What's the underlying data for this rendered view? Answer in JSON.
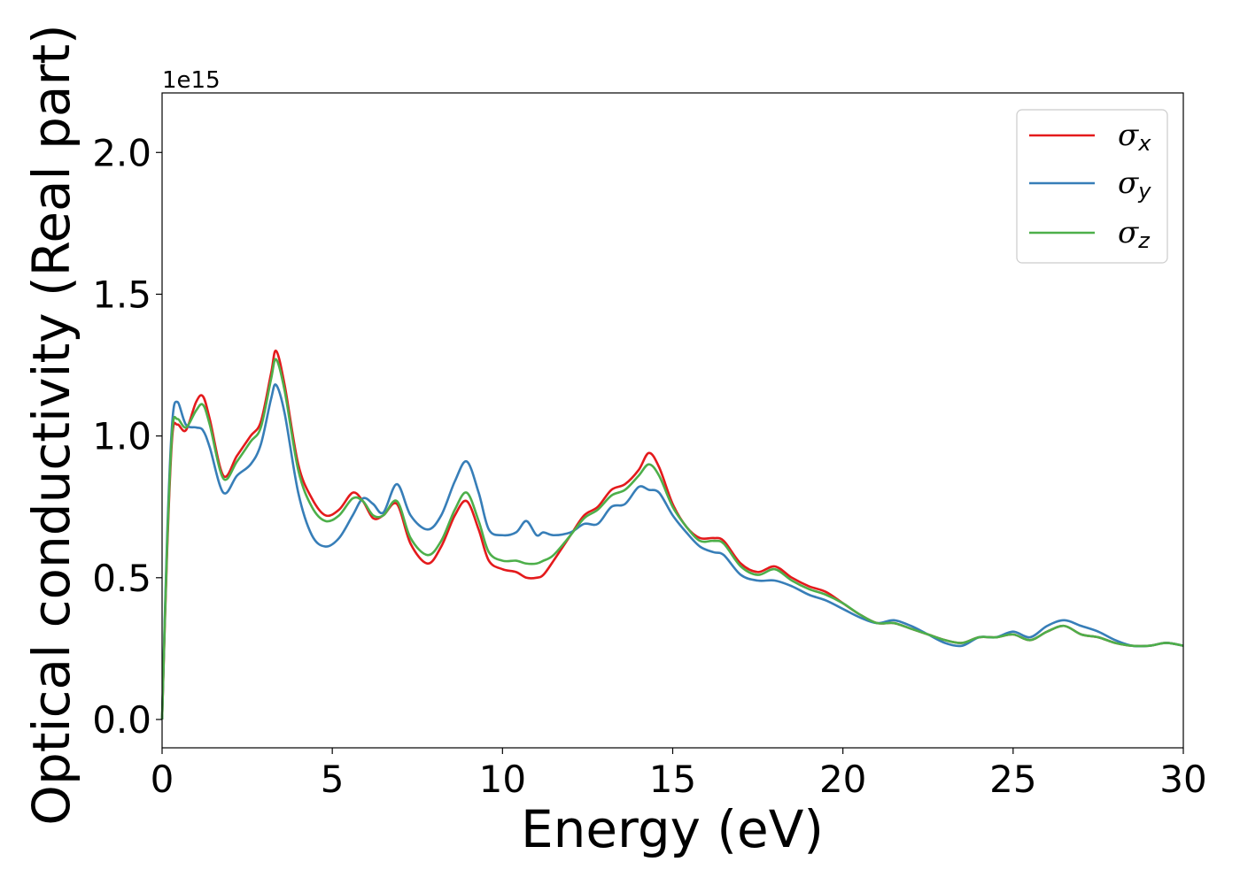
{
  "chart_data": {
    "type": "line",
    "title": "",
    "xlabel": "Energy (eV)",
    "ylabel": "Optical conductivity (Real part)",
    "y_offset_label": "1e15",
    "xlim": [
      0,
      30
    ],
    "ylim": [
      -0.1,
      2.21
    ],
    "xticks": [
      0,
      5,
      10,
      15,
      20,
      25,
      30
    ],
    "xtick_labels": [
      "0",
      "5",
      "10",
      "15",
      "20",
      "25",
      "30"
    ],
    "yticks": [
      0.0,
      0.5,
      1.0,
      1.5,
      2.0
    ],
    "ytick_labels": [
      "0.0",
      "0.5",
      "1.0",
      "1.5",
      "2.0"
    ],
    "grid": false,
    "legend_position": "top-right",
    "x": [
      0,
      0.15,
      0.3,
      0.45,
      0.7,
      1.0,
      1.2,
      1.4,
      1.8,
      2.2,
      2.6,
      2.9,
      3.2,
      3.35,
      3.6,
      4.0,
      4.4,
      4.8,
      5.2,
      5.6,
      5.9,
      6.2,
      6.5,
      6.9,
      7.3,
      7.8,
      8.2,
      8.6,
      8.95,
      9.3,
      9.6,
      10.0,
      10.4,
      10.7,
      11.0,
      11.2,
      11.5,
      12.0,
      12.4,
      12.8,
      13.2,
      13.6,
      14.0,
      14.3,
      14.6,
      15.0,
      15.4,
      15.8,
      16.2,
      16.5,
      17.0,
      17.5,
      18.0,
      18.5,
      19.0,
      19.5,
      20.0,
      20.5,
      21.0,
      21.5,
      22.0,
      22.5,
      23.0,
      23.5,
      24.0,
      24.5,
      25.0,
      25.5,
      26.0,
      26.5,
      27.0,
      27.5,
      28.0,
      28.5,
      29.0,
      29.5,
      30.0
    ],
    "series": [
      {
        "name": "σx",
        "color": "#e41a1c",
        "values": [
          0.0,
          0.6,
          1.0,
          1.04,
          1.02,
          1.12,
          1.14,
          1.06,
          0.86,
          0.93,
          1.0,
          1.05,
          1.22,
          1.3,
          1.18,
          0.9,
          0.78,
          0.72,
          0.74,
          0.8,
          0.77,
          0.71,
          0.72,
          0.76,
          0.62,
          0.55,
          0.61,
          0.72,
          0.77,
          0.67,
          0.56,
          0.53,
          0.52,
          0.5,
          0.5,
          0.51,
          0.56,
          0.65,
          0.72,
          0.75,
          0.81,
          0.83,
          0.88,
          0.94,
          0.89,
          0.76,
          0.68,
          0.64,
          0.64,
          0.63,
          0.55,
          0.52,
          0.54,
          0.5,
          0.47,
          0.45,
          0.41,
          0.37,
          0.34,
          0.34,
          0.32,
          0.3,
          0.28,
          0.27,
          0.29,
          0.29,
          0.3,
          0.28,
          0.31,
          0.33,
          0.3,
          0.29,
          0.27,
          0.26,
          0.26,
          0.27,
          0.26
        ]
      },
      {
        "name": "σy",
        "color": "#377eb8",
        "values": [
          0.0,
          0.65,
          1.05,
          1.12,
          1.04,
          1.03,
          1.02,
          0.96,
          0.8,
          0.86,
          0.9,
          0.97,
          1.13,
          1.18,
          1.08,
          0.8,
          0.65,
          0.61,
          0.64,
          0.72,
          0.78,
          0.76,
          0.73,
          0.83,
          0.72,
          0.67,
          0.72,
          0.84,
          0.91,
          0.8,
          0.67,
          0.65,
          0.66,
          0.7,
          0.65,
          0.66,
          0.65,
          0.66,
          0.69,
          0.69,
          0.75,
          0.76,
          0.82,
          0.81,
          0.8,
          0.72,
          0.66,
          0.61,
          0.59,
          0.58,
          0.51,
          0.49,
          0.49,
          0.47,
          0.44,
          0.42,
          0.39,
          0.36,
          0.34,
          0.35,
          0.33,
          0.3,
          0.27,
          0.26,
          0.29,
          0.29,
          0.31,
          0.29,
          0.33,
          0.35,
          0.33,
          0.31,
          0.28,
          0.26,
          0.26,
          0.27,
          0.26
        ]
      },
      {
        "name": "σz",
        "color": "#4daf4a",
        "values": [
          0.0,
          0.62,
          1.02,
          1.06,
          1.03,
          1.09,
          1.11,
          1.04,
          0.85,
          0.91,
          0.98,
          1.03,
          1.2,
          1.27,
          1.16,
          0.88,
          0.75,
          0.7,
          0.72,
          0.78,
          0.77,
          0.72,
          0.72,
          0.77,
          0.64,
          0.58,
          0.63,
          0.74,
          0.8,
          0.7,
          0.59,
          0.56,
          0.56,
          0.55,
          0.55,
          0.56,
          0.58,
          0.65,
          0.71,
          0.74,
          0.79,
          0.81,
          0.86,
          0.9,
          0.86,
          0.75,
          0.68,
          0.63,
          0.63,
          0.62,
          0.54,
          0.51,
          0.53,
          0.49,
          0.46,
          0.44,
          0.41,
          0.37,
          0.34,
          0.34,
          0.32,
          0.3,
          0.28,
          0.27,
          0.29,
          0.29,
          0.3,
          0.28,
          0.31,
          0.33,
          0.3,
          0.29,
          0.27,
          0.26,
          0.26,
          0.27,
          0.26
        ]
      }
    ],
    "legend": [
      {
        "symbol": "σ",
        "subscript": "x",
        "color": "#e41a1c"
      },
      {
        "symbol": "σ",
        "subscript": "y",
        "color": "#377eb8"
      },
      {
        "symbol": "σ",
        "subscript": "z",
        "color": "#4daf4a"
      }
    ]
  }
}
